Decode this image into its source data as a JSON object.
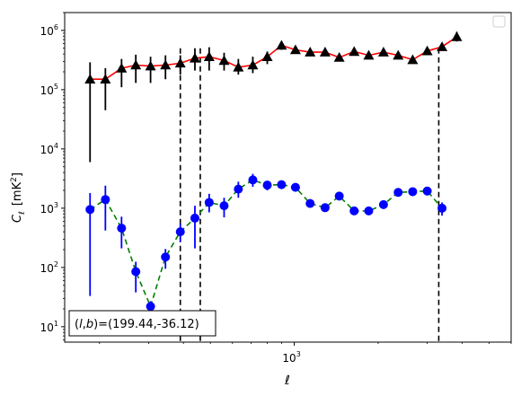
{
  "chart_data": {
    "type": "scatter",
    "title": "",
    "xlabel": "ℓ",
    "ylabel_main": "C",
    "ylabel_sub": "ℓ",
    "ylabel_unit": "[mK",
    "ylabel_unit_sup": "2",
    "ylabel_unit_close": "]",
    "xscale": "log",
    "yscale": "log",
    "xlim": [
      150,
      6000
    ],
    "ylim": [
      5.5,
      2000000
    ],
    "x_major_ticks": [
      {
        "value": 1000,
        "base": "10",
        "exp": "3"
      }
    ],
    "y_major_ticks": [
      {
        "value": 10,
        "base": "10",
        "exp": "1"
      },
      {
        "value": 100,
        "base": "10",
        "exp": "2"
      },
      {
        "value": 1000,
        "base": "10",
        "exp": "3"
      },
      {
        "value": 10000,
        "base": "10",
        "exp": "4"
      },
      {
        "value": 100000,
        "base": "10",
        "exp": "5"
      },
      {
        "value": 1000000,
        "base": "10",
        "exp": "6"
      }
    ],
    "vlines": [
      390,
      460,
      3300
    ],
    "annotation": "(l,b)=(199.44,-36.12)",
    "annotation_parts": {
      "open": "(",
      "l": "l",
      "comma": ",",
      "b": "b",
      "rest": ")=(199.44,-36.12)"
    },
    "legend": "empty box, upper-right",
    "series": [
      {
        "marker": "triangle",
        "marker_color": "#000000",
        "line_color": "#ff0000",
        "line_style": "solid",
        "points": [
          {
            "x": 185,
            "y": 150000,
            "lo": 6000,
            "hi": 290000
          },
          {
            "x": 210,
            "y": 150000,
            "lo": 45000,
            "hi": 230000
          },
          {
            "x": 240,
            "y": 230000,
            "lo": 110000,
            "hi": 330000
          },
          {
            "x": 270,
            "y": 260000,
            "lo": 130000,
            "hi": 390000
          },
          {
            "x": 305,
            "y": 250000,
            "lo": 130000,
            "hi": 360000
          },
          {
            "x": 345,
            "y": 260000,
            "lo": 150000,
            "hi": 380000
          },
          {
            "x": 390,
            "y": 280000,
            "lo": 180000,
            "hi": 380000
          },
          {
            "x": 440,
            "y": 340000,
            "lo": 210000,
            "hi": 500000
          },
          {
            "x": 495,
            "y": 360000,
            "lo": 210000,
            "hi": 520000
          },
          {
            "x": 560,
            "y": 310000,
            "lo": 210000,
            "hi": 420000
          },
          {
            "x": 630,
            "y": 240000,
            "lo": 180000,
            "hi": 330000
          },
          {
            "x": 710,
            "y": 260000,
            "lo": 190000,
            "hi": 360000
          },
          {
            "x": 800,
            "y": 360000,
            "lo": 270000,
            "hi": 440000
          },
          {
            "x": 900,
            "y": 560000,
            "lo": 470000,
            "hi": 650000
          },
          {
            "x": 1010,
            "y": 470000,
            "lo": 410000,
            "hi": 530000
          },
          {
            "x": 1140,
            "y": 430000,
            "lo": 380000,
            "hi": 490000
          },
          {
            "x": 1290,
            "y": 430000,
            "lo": 370000,
            "hi": 490000
          },
          {
            "x": 1450,
            "y": 350000,
            "lo": 300000,
            "hi": 400000
          },
          {
            "x": 1640,
            "y": 440000,
            "lo": 390000,
            "hi": 500000
          },
          {
            "x": 1850,
            "y": 380000,
            "lo": 340000,
            "hi": 420000
          },
          {
            "x": 2090,
            "y": 430000,
            "lo": 390000,
            "hi": 470000
          },
          {
            "x": 2360,
            "y": 380000,
            "lo": 340000,
            "hi": 420000
          },
          {
            "x": 2660,
            "y": 320000,
            "lo": 290000,
            "hi": 360000
          },
          {
            "x": 3000,
            "y": 450000,
            "lo": 400000,
            "hi": 500000
          },
          {
            "x": 3390,
            "y": 530000,
            "lo": 480000,
            "hi": 580000
          },
          {
            "x": 3830,
            "y": 780000,
            "lo": 650000,
            "hi": 950000
          }
        ]
      },
      {
        "marker": "circle",
        "marker_color": "#0000ff",
        "line_color": "#008000",
        "line_style": "dashed",
        "points": [
          {
            "x": 185,
            "y": 950,
            "lo": 33,
            "hi": 1800
          },
          {
            "x": 210,
            "y": 1400,
            "lo": 420,
            "hi": 2400
          },
          {
            "x": 240,
            "y": 460,
            "lo": 210,
            "hi": 720
          },
          {
            "x": 270,
            "y": 85,
            "lo": 38,
            "hi": 125
          },
          {
            "x": 305,
            "y": 22,
            "lo": 17,
            "hi": 27
          },
          {
            "x": 345,
            "y": 150,
            "lo": 95,
            "hi": 205
          },
          {
            "x": 390,
            "y": 400,
            "lo": 270,
            "hi": 550
          },
          {
            "x": 440,
            "y": 680,
            "lo": 210,
            "hi": 1100
          },
          {
            "x": 495,
            "y": 1250,
            "lo": 850,
            "hi": 1750
          },
          {
            "x": 560,
            "y": 1100,
            "lo": 700,
            "hi": 1500
          },
          {
            "x": 630,
            "y": 2100,
            "lo": 1500,
            "hi": 2800
          },
          {
            "x": 710,
            "y": 3000,
            "lo": 2300,
            "hi": 3800
          },
          {
            "x": 800,
            "y": 2450,
            "lo": 2000,
            "hi": 2900
          },
          {
            "x": 900,
            "y": 2500,
            "lo": 2100,
            "hi": 2900
          },
          {
            "x": 1010,
            "y": 2250,
            "lo": 1900,
            "hi": 2600
          },
          {
            "x": 1140,
            "y": 1200,
            "lo": 1050,
            "hi": 1350
          },
          {
            "x": 1290,
            "y": 1020,
            "lo": 880,
            "hi": 1160
          },
          {
            "x": 1450,
            "y": 1600,
            "lo": 1420,
            "hi": 1780
          },
          {
            "x": 1640,
            "y": 900,
            "lo": 800,
            "hi": 1000
          },
          {
            "x": 1850,
            "y": 900,
            "lo": 810,
            "hi": 990
          },
          {
            "x": 2090,
            "y": 1150,
            "lo": 1050,
            "hi": 1250
          },
          {
            "x": 2360,
            "y": 1850,
            "lo": 1700,
            "hi": 2000
          },
          {
            "x": 2660,
            "y": 1900,
            "lo": 1750,
            "hi": 2050
          },
          {
            "x": 3000,
            "y": 1950,
            "lo": 1800,
            "hi": 2100
          },
          {
            "x": 3390,
            "y": 1000,
            "lo": 750,
            "hi": 1250
          }
        ]
      }
    ]
  }
}
